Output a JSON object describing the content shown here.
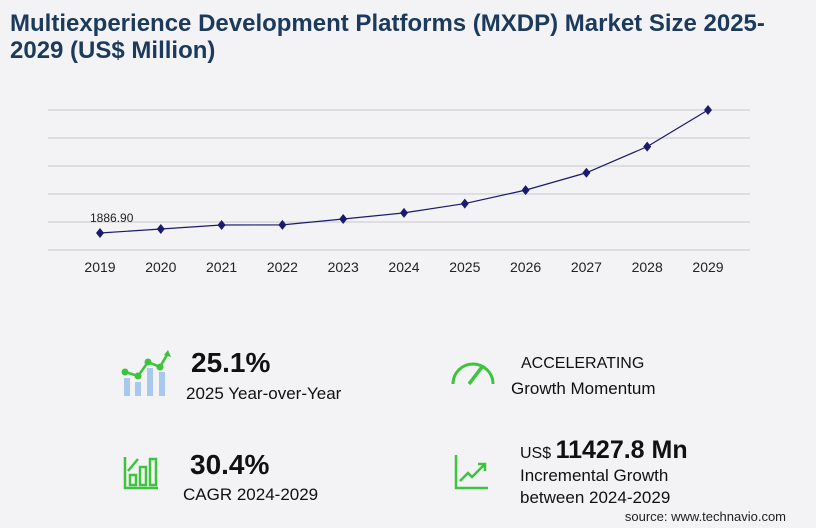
{
  "title": "Multiexperience Development Platforms (MXDP) Market Size 2025-2029 (US$ Million)",
  "chart_data": {
    "type": "line",
    "title": "Multiexperience Development Platforms (MXDP) Market Size 2025-2029 (US$ Million)",
    "categories": [
      "2019",
      "2020",
      "2021",
      "2022",
      "2023",
      "2024",
      "2025",
      "2026",
      "2027",
      "2028",
      "2029"
    ],
    "values": [
      1886.9,
      2330,
      2780,
      2790,
      3440,
      4122,
      5157,
      6650,
      8580,
      11480,
      15550
    ],
    "data_labels": {
      "2019": "1886.90"
    },
    "ylim": [
      0,
      15550
    ],
    "grid": true,
    "line_color": "#1a1a6e"
  },
  "stats": {
    "yoy_value": "25.1%",
    "yoy_label": "2025 Year-over-Year",
    "momentum_value": "ACCELERATING",
    "momentum_label": "Growth Momentum",
    "cagr_value": "30.4%",
    "cagr_label": "CAGR 2024-2029",
    "incr_currency": "US$",
    "incr_value": "11427.8 Mn",
    "incr_label1": "Incremental Growth",
    "incr_label2": "between 2024-2029"
  },
  "source": "source: www.technavio.com",
  "colors": {
    "accent": "#3cc43c",
    "title": "#1b3a5c",
    "bars": "#a9c8f0"
  }
}
